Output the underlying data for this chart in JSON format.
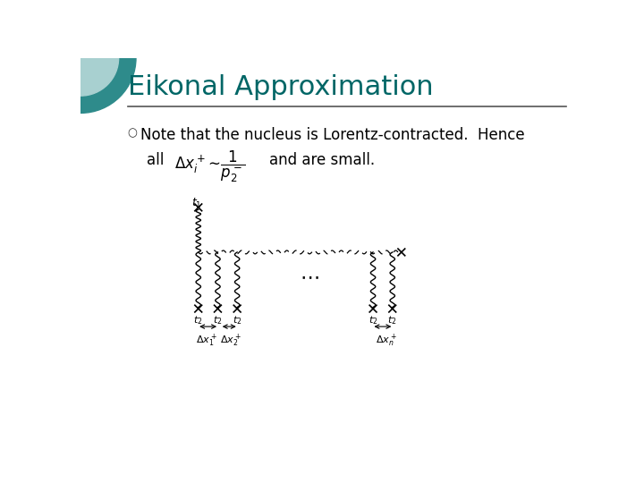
{
  "title": "Eikonal Approximation",
  "title_color": "#006666",
  "title_fontsize": 22,
  "bg_color": "#ffffff",
  "bullet_text": "Note that the nucleus is Lorentz-contracted.  Hence",
  "bullet_text2": "all",
  "bullet_text3": "and are small.",
  "slide_bg": "#ffffff",
  "line_color": "#000000",
  "deco_circle_color1": "#2e8b8b",
  "deco_circle_color2": "#a8d0d0"
}
